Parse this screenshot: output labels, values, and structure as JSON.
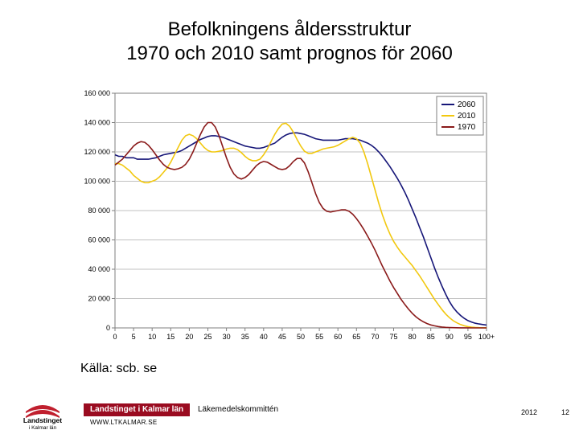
{
  "title_line1": "Befolkningens åldersstruktur",
  "title_line2": "1970 och 2010 samt prognos för 2060",
  "source_label": "Källa: scb. se",
  "footer": {
    "org": "Landstinget i Kalmar län",
    "committee": "Läkemedelskommittén",
    "url": "WWW.LTKALMAR.SE",
    "year": "2012",
    "page": "12",
    "org_bar_bg": "#9a0b20",
    "logo_text_top": "Landstinget",
    "logo_text_bottom": "i Kalmar län",
    "logo_color": "#c01f2e"
  },
  "chart": {
    "type": "line",
    "background_color": "#ffffff",
    "plot_border_color": "#7f7f7f",
    "grid_color": "#c0c0c0",
    "axis_text_color": "#000000",
    "axis_fontsize": 9,
    "x_label": "",
    "y_label": "",
    "xlim": [
      0,
      100
    ],
    "x_ticks": [
      0,
      5,
      10,
      15,
      20,
      25,
      30,
      35,
      40,
      45,
      50,
      55,
      60,
      65,
      70,
      75,
      80,
      85,
      90,
      95,
      100
    ],
    "x_tick_labels": [
      "0",
      "5",
      "10",
      "15",
      "20",
      "25",
      "30",
      "35",
      "40",
      "45",
      "50",
      "55",
      "60",
      "65",
      "70",
      "75",
      "80",
      "85",
      "90",
      "95",
      "100+"
    ],
    "ylim": [
      0,
      160000
    ],
    "y_ticks": [
      0,
      20000,
      40000,
      60000,
      80000,
      100000,
      120000,
      140000,
      160000
    ],
    "y_tick_labels": [
      "0",
      "20 000",
      "40 000",
      "60 000",
      "80 000",
      "100 000",
      "120 000",
      "140 000",
      "160 000"
    ],
    "line_width": 1.6,
    "legend": {
      "position": "top-right",
      "border_color": "#7f7f7f",
      "bg": "#ffffff",
      "fontsize": 10,
      "items": [
        {
          "label": "2060",
          "color": "#161678"
        },
        {
          "label": "2010",
          "color": "#f2c80f"
        },
        {
          "label": "1970",
          "color": "#8a1a1a"
        }
      ]
    },
    "series": [
      {
        "name": "2060",
        "color": "#161678",
        "y": [
          118000,
          117000,
          117000,
          116000,
          116000,
          116000,
          115000,
          115000,
          115000,
          115000,
          115500,
          116000,
          117000,
          118000,
          118500,
          119000,
          119500,
          120000,
          121000,
          122500,
          124000,
          125500,
          127000,
          128500,
          129500,
          130500,
          131000,
          131000,
          130500,
          130000,
          129000,
          128000,
          127000,
          126000,
          125000,
          124000,
          123500,
          123000,
          122500,
          122500,
          123000,
          124000,
          125000,
          126000,
          128000,
          130000,
          131500,
          132500,
          133000,
          133000,
          132500,
          132000,
          131000,
          130000,
          129000,
          128500,
          128000,
          128000,
          128000,
          128000,
          128000,
          128500,
          129000,
          129000,
          129000,
          128500,
          128000,
          127000,
          126000,
          124500,
          122500,
          120000,
          117000,
          113500,
          110000,
          106000,
          102000,
          97500,
          92500,
          87000,
          81000,
          75000,
          68500,
          62000,
          55000,
          48000,
          41000,
          34500,
          28500,
          23000,
          18000,
          14000,
          11000,
          8500,
          6500,
          5000,
          4000,
          3200,
          2700,
          2300,
          2000
        ]
      },
      {
        "name": "2010",
        "color": "#f2c80f",
        "y": [
          112000,
          112000,
          111000,
          109000,
          107000,
          104000,
          102000,
          100000,
          99000,
          99000,
          100000,
          101000,
          103000,
          106000,
          109000,
          113000,
          118000,
          123000,
          128000,
          131000,
          132000,
          131000,
          129000,
          126000,
          123000,
          121000,
          120000,
          120000,
          120500,
          121000,
          122000,
          122500,
          122500,
          121500,
          119500,
          117000,
          115000,
          114000,
          114000,
          115000,
          118000,
          122000,
          127000,
          132000,
          136000,
          139000,
          139500,
          137500,
          133500,
          128500,
          124000,
          120500,
          119000,
          119000,
          120000,
          121000,
          122000,
          122500,
          123000,
          123500,
          124500,
          126000,
          127500,
          129000,
          130000,
          129000,
          126000,
          120000,
          112000,
          103000,
          94000,
          85000,
          77000,
          70000,
          64000,
          59000,
          55000,
          51500,
          48500,
          45500,
          42500,
          39000,
          35500,
          31500,
          27500,
          23500,
          19500,
          16000,
          12500,
          9500,
          7000,
          5000,
          3500,
          2300,
          1500,
          900,
          550,
          320,
          180,
          100,
          60
        ]
      },
      {
        "name": "1970",
        "color": "#8a1a1a",
        "y": [
          111000,
          113000,
          115000,
          118000,
          121000,
          124000,
          126000,
          127000,
          126500,
          124500,
          121500,
          118000,
          114500,
          111500,
          109500,
          108500,
          108000,
          108500,
          109500,
          111500,
          115000,
          120000,
          126000,
          132000,
          137000,
          140000,
          140000,
          137000,
          131000,
          123500,
          116000,
          109500,
          105000,
          102500,
          101500,
          102500,
          104500,
          107500,
          110500,
          112500,
          113500,
          113000,
          111500,
          110000,
          108500,
          108000,
          108500,
          110500,
          113500,
          115500,
          115500,
          112500,
          106500,
          99000,
          91500,
          85500,
          81500,
          79500,
          79000,
          79500,
          80000,
          80500,
          80500,
          79500,
          77500,
          74500,
          71000,
          67000,
          62500,
          58000,
          53000,
          47500,
          42000,
          37000,
          32000,
          27500,
          23500,
          19500,
          16000,
          12800,
          10000,
          7600,
          5700,
          4150,
          2950,
          2050,
          1400,
          940,
          620,
          400,
          260,
          170,
          110,
          72,
          48,
          32,
          22,
          16,
          12,
          9,
          7
        ]
      }
    ]
  }
}
